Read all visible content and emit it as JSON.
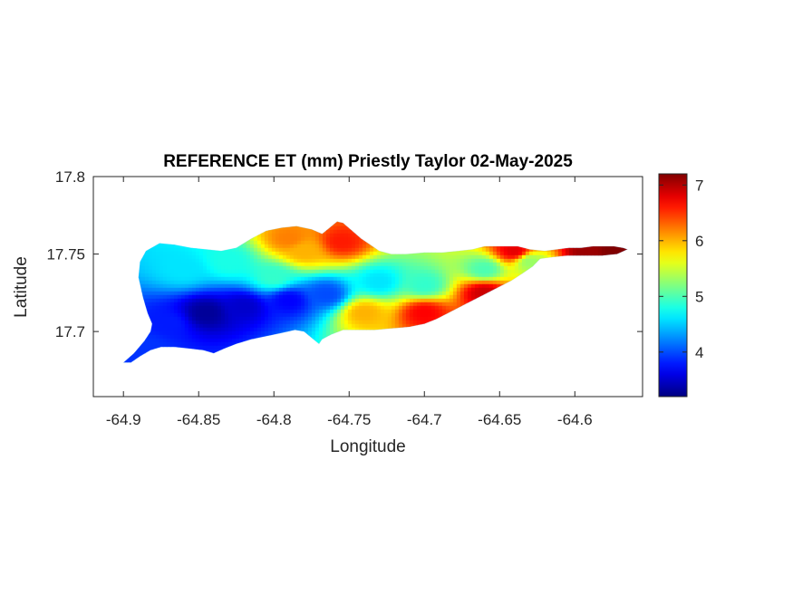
{
  "chart_data": {
    "type": "heatmap",
    "title": "REFERENCE ET (mm) Priestly Taylor 02-May-2025",
    "xlabel": "Longitude",
    "ylabel": "Latitude",
    "xlim": [
      -64.92,
      -64.555
    ],
    "ylim": [
      17.658,
      17.8
    ],
    "x_ticks": [
      -64.9,
      -64.85,
      -64.8,
      -64.75,
      -64.7,
      -64.65,
      -64.6
    ],
    "x_tick_labels": [
      "-64.9",
      "-64.85",
      "-64.8",
      "-64.75",
      "-64.7",
      "-64.65",
      "-64.6"
    ],
    "y_ticks": [
      17.7,
      17.75,
      17.8
    ],
    "y_tick_labels": [
      "17.7",
      "17.75",
      "17.8"
    ],
    "colorbar": {
      "colormap": "jet",
      "clim": [
        3.2,
        7.2
      ],
      "ticks": [
        4,
        5,
        6,
        7
      ],
      "tick_labels": [
        "4",
        "5",
        "6",
        "7"
      ]
    },
    "grid": false,
    "island_outline": [
      [
        -64.9,
        17.68
      ],
      [
        -64.893,
        17.686
      ],
      [
        -64.886,
        17.694
      ],
      [
        -64.882,
        17.7
      ],
      [
        -64.881,
        17.705
      ],
      [
        -64.884,
        17.712
      ],
      [
        -64.887,
        17.722
      ],
      [
        -64.89,
        17.735
      ],
      [
        -64.889,
        17.745
      ],
      [
        -64.885,
        17.752
      ],
      [
        -64.876,
        17.757
      ],
      [
        -64.866,
        17.756
      ],
      [
        -64.855,
        17.754
      ],
      [
        -64.845,
        17.753
      ],
      [
        -64.835,
        17.752
      ],
      [
        -64.825,
        17.754
      ],
      [
        -64.815,
        17.76
      ],
      [
        -64.805,
        17.765
      ],
      [
        -64.795,
        17.767
      ],
      [
        -64.785,
        17.768
      ],
      [
        -64.775,
        17.766
      ],
      [
        -64.768,
        17.763
      ],
      [
        -64.763,
        17.767
      ],
      [
        -64.758,
        17.771
      ],
      [
        -64.754,
        17.77
      ],
      [
        -64.748,
        17.765
      ],
      [
        -64.742,
        17.76
      ],
      [
        -64.736,
        17.756
      ],
      [
        -64.73,
        17.752
      ],
      [
        -64.722,
        17.75
      ],
      [
        -64.712,
        17.75
      ],
      [
        -64.7,
        17.751
      ],
      [
        -64.688,
        17.751
      ],
      [
        -64.677,
        17.752
      ],
      [
        -64.668,
        17.753
      ],
      [
        -64.66,
        17.755
      ],
      [
        -64.652,
        17.755
      ],
      [
        -64.645,
        17.755
      ],
      [
        -64.638,
        17.755
      ],
      [
        -64.63,
        17.753
      ],
      [
        -64.62,
        17.752
      ],
      [
        -64.612,
        17.753
      ],
      [
        -64.604,
        17.754
      ],
      [
        -64.596,
        17.754
      ],
      [
        -64.588,
        17.755
      ],
      [
        -64.58,
        17.755
      ],
      [
        -64.574,
        17.755
      ],
      [
        -64.568,
        17.754
      ],
      [
        -64.565,
        17.753
      ],
      [
        -64.572,
        17.75
      ],
      [
        -64.582,
        17.749
      ],
      [
        -64.593,
        17.749
      ],
      [
        -64.605,
        17.749
      ],
      [
        -64.615,
        17.748
      ],
      [
        -64.623,
        17.747
      ],
      [
        -64.628,
        17.742
      ],
      [
        -64.634,
        17.738
      ],
      [
        -64.642,
        17.733
      ],
      [
        -64.652,
        17.728
      ],
      [
        -64.662,
        17.723
      ],
      [
        -64.672,
        17.718
      ],
      [
        -64.682,
        17.713
      ],
      [
        -64.692,
        17.708
      ],
      [
        -64.7,
        17.705
      ],
      [
        -64.71,
        17.703
      ],
      [
        -64.722,
        17.702
      ],
      [
        -64.733,
        17.701
      ],
      [
        -64.744,
        17.701
      ],
      [
        -64.754,
        17.701
      ],
      [
        -64.762,
        17.698
      ],
      [
        -64.768,
        17.695
      ],
      [
        -64.77,
        17.692
      ],
      [
        -64.775,
        17.696
      ],
      [
        -64.78,
        17.7
      ],
      [
        -64.786,
        17.701
      ],
      [
        -64.795,
        17.699
      ],
      [
        -64.805,
        17.697
      ],
      [
        -64.815,
        17.695
      ],
      [
        -64.825,
        17.692
      ],
      [
        -64.833,
        17.689
      ],
      [
        -64.84,
        17.686
      ],
      [
        -64.847,
        17.688
      ],
      [
        -64.856,
        17.689
      ],
      [
        -64.866,
        17.69
      ],
      [
        -64.875,
        17.69
      ],
      [
        -64.882,
        17.688
      ],
      [
        -64.889,
        17.684
      ],
      [
        -64.895,
        17.68
      ]
    ],
    "field_anchors": [
      {
        "lon": -64.845,
        "lat": 17.712,
        "value": 3.3
      },
      {
        "lon": -64.82,
        "lat": 17.716,
        "value": 3.5
      },
      {
        "lon": -64.79,
        "lat": 17.72,
        "value": 3.7
      },
      {
        "lon": -64.87,
        "lat": 17.705,
        "value": 3.8
      },
      {
        "lon": -64.765,
        "lat": 17.724,
        "value": 4.0
      },
      {
        "lon": -64.86,
        "lat": 17.74,
        "value": 4.6
      },
      {
        "lon": -64.83,
        "lat": 17.745,
        "value": 4.8
      },
      {
        "lon": -64.8,
        "lat": 17.735,
        "value": 4.9
      },
      {
        "lon": -64.73,
        "lat": 17.732,
        "value": 4.6
      },
      {
        "lon": -64.7,
        "lat": 17.73,
        "value": 4.9
      },
      {
        "lon": -64.66,
        "lat": 17.74,
        "value": 5.0
      },
      {
        "lon": -64.63,
        "lat": 17.745,
        "value": 5.3
      },
      {
        "lon": -64.78,
        "lat": 17.752,
        "value": 6.0
      },
      {
        "lon": -64.79,
        "lat": 17.76,
        "value": 6.2
      },
      {
        "lon": -64.755,
        "lat": 17.758,
        "value": 6.6
      },
      {
        "lon": -64.74,
        "lat": 17.712,
        "value": 6.0
      },
      {
        "lon": -64.7,
        "lat": 17.712,
        "value": 6.7
      },
      {
        "lon": -64.66,
        "lat": 17.725,
        "value": 6.9
      },
      {
        "lon": -64.64,
        "lat": 17.752,
        "value": 6.8
      },
      {
        "lon": -64.59,
        "lat": 17.751,
        "value": 7.1
      },
      {
        "lon": -64.575,
        "lat": 17.752,
        "value": 7.2
      },
      {
        "lon": -64.885,
        "lat": 17.69,
        "value": 3.9
      }
    ]
  }
}
